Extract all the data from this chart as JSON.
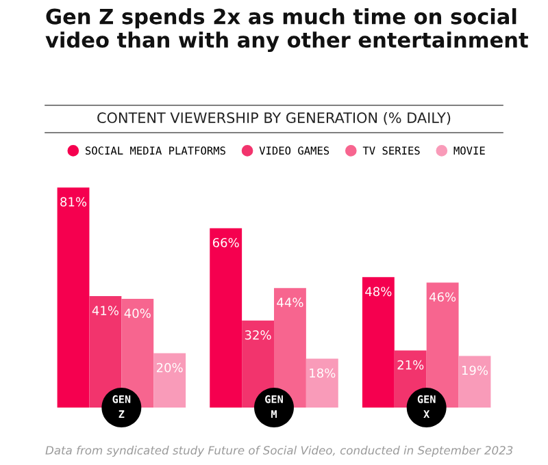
{
  "chart_data": {
    "type": "bar",
    "title": "Gen Z spends 2x as much time on social video than with any other entertainment",
    "subtitle": "CONTENT VIEWERSHIP BY GENERATION (% DAILY)",
    "categories": [
      "GEN\nZ",
      "GEN\nM",
      "GEN\nX"
    ],
    "series": [
      {
        "name": "SOCIAL MEDIA PLATFORMS",
        "color": "#f5004f",
        "values": [
          81,
          66,
          48
        ],
        "value_labels": [
          "81%",
          "66%",
          "48%"
        ]
      },
      {
        "name": "VIDEO GAMES",
        "color": "#f2346d",
        "values": [
          41,
          32,
          21
        ],
        "value_labels": [
          "41%",
          "32%",
          "21%"
        ]
      },
      {
        "name": "TV SERIES",
        "color": "#f7658f",
        "values": [
          40,
          44,
          46
        ],
        "value_labels": [
          "40%",
          "44%",
          "46%"
        ]
      },
      {
        "name": "MOVIE",
        "color": "#f99bb9",
        "values": [
          20,
          18,
          19
        ],
        "value_labels": [
          "20%",
          "18%",
          "19%"
        ]
      }
    ],
    "legend": "top",
    "annotations": [
      "Data from syndicated study Future of Social Video, conducted in September 2023"
    ]
  }
}
